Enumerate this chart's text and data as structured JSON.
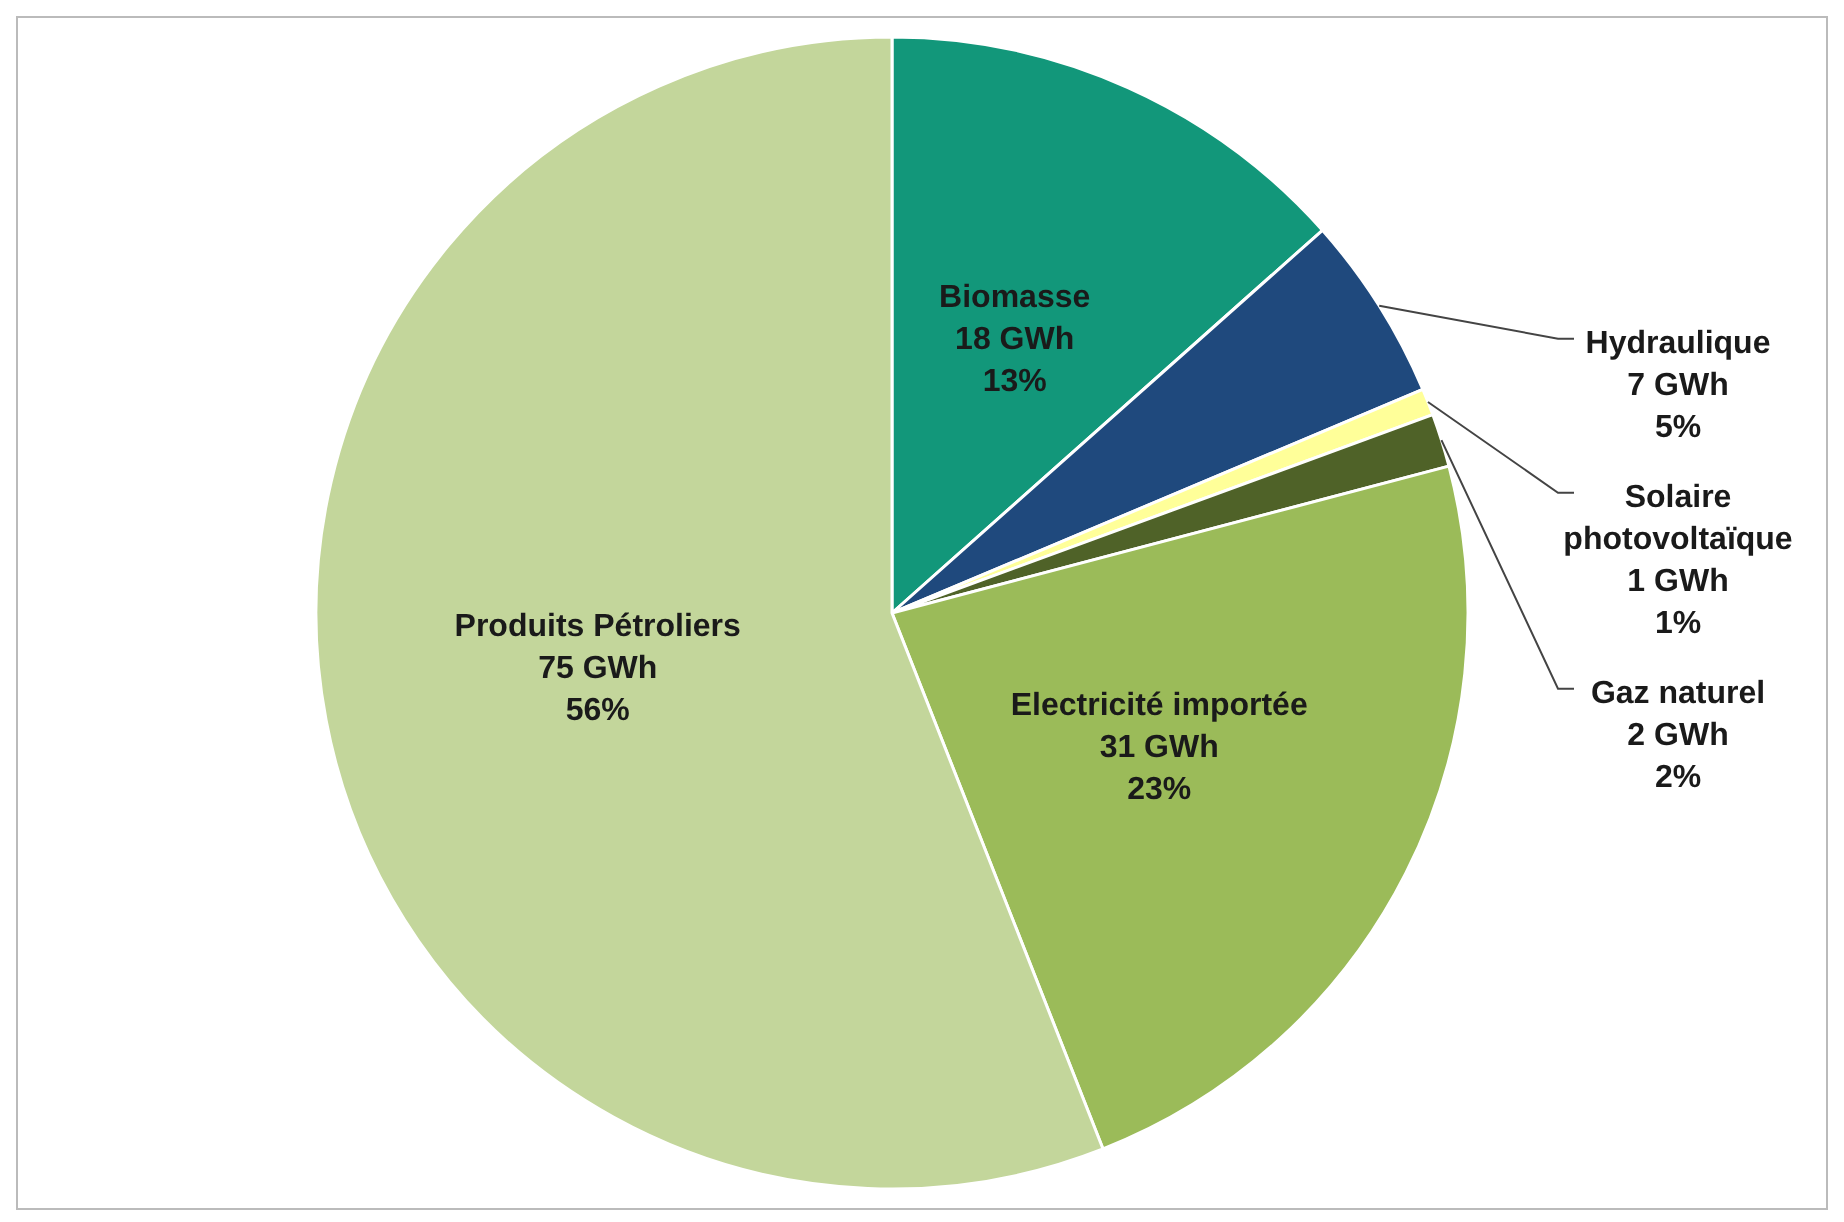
{
  "chart_data": {
    "type": "pie",
    "categories": [
      "Biomasse",
      "Hydraulique",
      "Solaire photovoltaïque",
      "Gaz naturel",
      "Electricité importée",
      "Produits Pétroliers"
    ],
    "values": [
      18,
      7,
      1,
      2,
      31,
      75
    ],
    "colors": [
      "#12977a",
      "#1f497d",
      "#ffff99",
      "#4f6228",
      "#9bbb59",
      "#c3d69b"
    ],
    "value_labels": [
      "18 GWh\n13%",
      "7 GWh\n5%",
      "1 GWh\n1%",
      "2 GWh\n2%",
      "31 GWh\n23%",
      "75 GWh\n56%"
    ],
    "legend": false
  }
}
